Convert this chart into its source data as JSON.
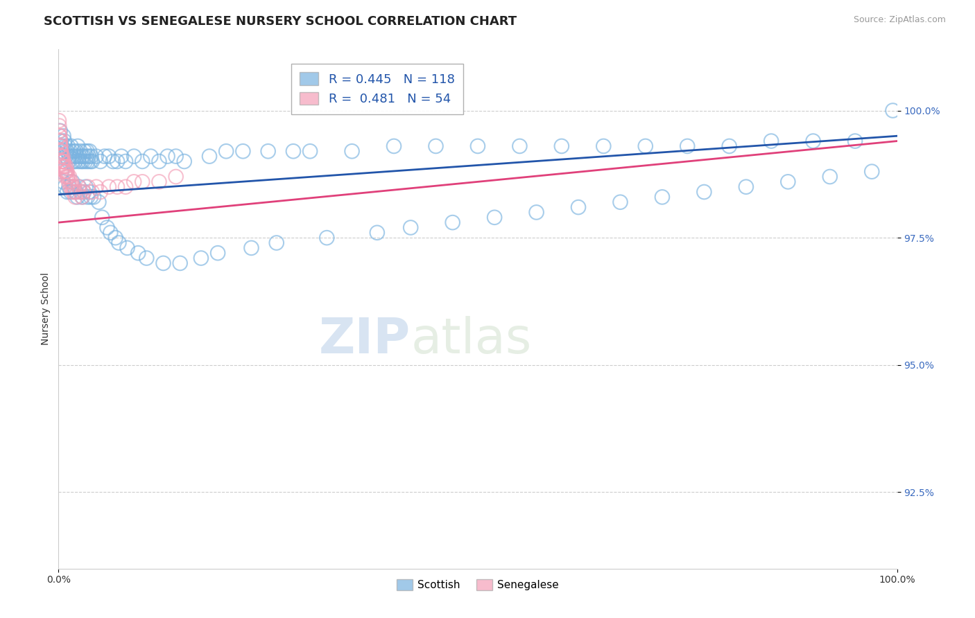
{
  "title": "SCOTTISH VS SENEGALESE NURSERY SCHOOL CORRELATION CHART",
  "source": "Source: ZipAtlas.com",
  "ylabel": "Nursery School",
  "yticks": [
    92.5,
    95.0,
    97.5,
    100.0
  ],
  "ytick_labels": [
    "92.5%",
    "95.0%",
    "97.5%",
    "100.0%"
  ],
  "xlim": [
    0.0,
    100.0
  ],
  "ylim": [
    91.0,
    101.2
  ],
  "blue_R": 0.445,
  "blue_N": 118,
  "pink_R": 0.481,
  "pink_N": 54,
  "blue_color": "#7ab3e0",
  "pink_color": "#f4a0b8",
  "trend_blue": "#2255aa",
  "trend_pink": "#e0407a",
  "legend_label_blue": "Scottish",
  "legend_label_pink": "Senegalese",
  "title_fontsize": 13,
  "axis_label_fontsize": 10,
  "tick_fontsize": 10,
  "background_color": "#ffffff",
  "blue_scatter_x": [
    0.2,
    0.3,
    0.4,
    0.5,
    0.6,
    0.7,
    0.8,
    0.9,
    1.0,
    1.1,
    1.2,
    1.3,
    1.4,
    1.5,
    1.6,
    1.7,
    1.8,
    1.9,
    2.0,
    2.1,
    2.2,
    2.3,
    2.4,
    2.5,
    2.6,
    2.7,
    2.8,
    2.9,
    3.0,
    3.1,
    3.2,
    3.3,
    3.4,
    3.5,
    3.6,
    3.7,
    3.8,
    3.9,
    4.0,
    4.5,
    5.0,
    5.5,
    6.0,
    6.5,
    7.0,
    7.5,
    8.0,
    9.0,
    10.0,
    11.0,
    12.0,
    13.0,
    14.0,
    15.0,
    18.0,
    20.0,
    22.0,
    25.0,
    28.0,
    30.0,
    35.0,
    40.0,
    45.0,
    50.0,
    55.0,
    60.0,
    65.0,
    70.0,
    75.0,
    80.0,
    85.0,
    90.0,
    95.0,
    99.5,
    0.35,
    0.55,
    0.75,
    1.05,
    1.25,
    1.45,
    1.65,
    1.85,
    2.05,
    2.25,
    2.45,
    2.65,
    2.85,
    3.05,
    3.25,
    3.45,
    3.65,
    3.85,
    4.2,
    4.8,
    5.2,
    5.8,
    6.2,
    6.8,
    7.2,
    8.2,
    9.5,
    10.5,
    12.5,
    14.5,
    17.0,
    19.0,
    23.0,
    26.0,
    32.0,
    38.0,
    42.0,
    47.0,
    52.0,
    57.0,
    62.0,
    67.0,
    72.0,
    77.0,
    82.0,
    87.0,
    92.0,
    97.0
  ],
  "blue_scatter_y": [
    99.6,
    99.4,
    99.3,
    99.2,
    99.5,
    99.4,
    99.3,
    99.1,
    99.2,
    99.3,
    99.0,
    99.1,
    99.2,
    99.3,
    99.1,
    99.0,
    99.2,
    99.1,
    99.0,
    99.2,
    99.1,
    99.3,
    99.0,
    99.1,
    99.2,
    99.0,
    99.1,
    99.0,
    99.1,
    99.2,
    99.0,
    99.1,
    99.2,
    99.0,
    99.1,
    99.2,
    99.0,
    99.1,
    99.0,
    99.1,
    99.0,
    99.1,
    99.1,
    99.0,
    99.0,
    99.1,
    99.0,
    99.1,
    99.0,
    99.1,
    99.0,
    99.1,
    99.1,
    99.0,
    99.1,
    99.2,
    99.2,
    99.2,
    99.2,
    99.2,
    99.2,
    99.3,
    99.3,
    99.3,
    99.3,
    99.3,
    99.3,
    99.3,
    99.3,
    99.3,
    99.4,
    99.4,
    99.4,
    100.0,
    98.8,
    98.6,
    98.5,
    98.4,
    98.5,
    98.4,
    98.6,
    98.5,
    98.4,
    98.3,
    98.5,
    98.4,
    98.3,
    98.4,
    98.5,
    98.3,
    98.4,
    98.3,
    98.3,
    98.2,
    97.9,
    97.7,
    97.6,
    97.5,
    97.4,
    97.3,
    97.2,
    97.1,
    97.0,
    97.0,
    97.1,
    97.2,
    97.3,
    97.4,
    97.5,
    97.6,
    97.7,
    97.8,
    97.9,
    98.0,
    98.1,
    98.2,
    98.3,
    98.4,
    98.5,
    98.6,
    98.7,
    98.8
  ],
  "pink_scatter_x": [
    0.05,
    0.1,
    0.15,
    0.2,
    0.25,
    0.3,
    0.35,
    0.4,
    0.5,
    0.6,
    0.7,
    0.8,
    0.9,
    1.0,
    1.1,
    1.2,
    1.3,
    1.4,
    1.5,
    1.6,
    1.7,
    1.8,
    1.9,
    2.0,
    2.2,
    2.4,
    2.6,
    2.8,
    3.0,
    3.5,
    4.0,
    4.5,
    5.0,
    6.0,
    7.0,
    8.0,
    9.0,
    10.0,
    12.0,
    14.0,
    0.08,
    0.12,
    0.18,
    0.22,
    0.28,
    0.32,
    0.38,
    0.42,
    0.55,
    0.65,
    0.75,
    0.85,
    0.95,
    1.05
  ],
  "pink_scatter_y": [
    99.8,
    99.6,
    99.5,
    99.4,
    99.3,
    99.2,
    99.1,
    99.0,
    99.1,
    99.0,
    98.9,
    98.8,
    98.9,
    98.8,
    98.7,
    98.6,
    98.7,
    98.5,
    98.6,
    98.5,
    98.4,
    98.5,
    98.4,
    98.3,
    98.4,
    98.5,
    98.4,
    98.3,
    98.4,
    98.5,
    98.4,
    98.5,
    98.4,
    98.5,
    98.5,
    98.5,
    98.6,
    98.6,
    98.6,
    98.7,
    99.7,
    99.5,
    99.4,
    99.3,
    99.2,
    99.1,
    99.0,
    98.9,
    99.0,
    98.9,
    98.8,
    98.7,
    98.8,
    98.7
  ],
  "blue_trend_x0": 0.0,
  "blue_trend_y0": 98.35,
  "blue_trend_x1": 100.0,
  "blue_trend_y1": 99.5,
  "pink_trend_x0": 0.0,
  "pink_trend_y0": 97.8,
  "pink_trend_x1": 100.0,
  "pink_trend_y1": 99.4
}
